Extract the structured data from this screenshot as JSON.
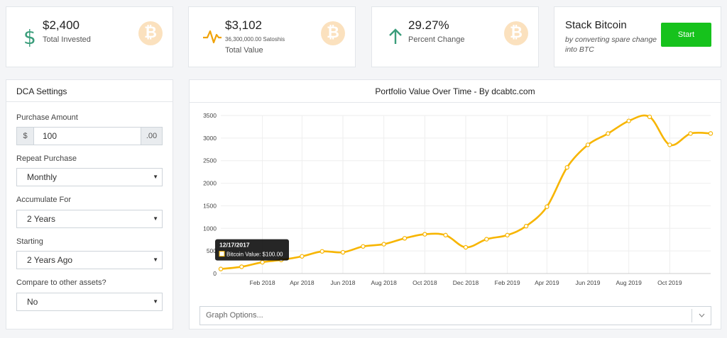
{
  "stats": {
    "invested": {
      "value": "$2,400",
      "label": "Total Invested"
    },
    "total": {
      "value": "$3,102",
      "satoshis": "36,300,000.00 Satoshis",
      "label": "Total Value"
    },
    "change": {
      "value": "29.27%",
      "label": "Percent Change"
    },
    "coin_symbol": "₿"
  },
  "stack": {
    "title": "Stack Bitcoin",
    "subtitle": "by converting spare change into BTC",
    "button": "Start"
  },
  "settings": {
    "title": "DCA Settings",
    "purchase_amount_label": "Purchase Amount",
    "currency_prefix": "$",
    "amount_value": "100",
    "amount_suffix": ".00",
    "repeat_label": "Repeat Purchase",
    "repeat_value": "Monthly",
    "accumulate_label": "Accumulate For",
    "accumulate_value": "2 Years",
    "starting_label": "Starting",
    "starting_value": "2 Years Ago",
    "compare_label": "Compare to other assets?",
    "compare_value": "No"
  },
  "graph_options_placeholder": "Graph Options...",
  "colors": {
    "line": "#f7b500",
    "accent_green": "#16c21c",
    "stat_icon_green": "#3a9d7b",
    "stat_icon_orange": "#f0a30a"
  },
  "chart_data": {
    "type": "line",
    "title": "Portfolio Value Over Time - By dcabtc.com",
    "ylim": [
      0,
      3500
    ],
    "yticks": [
      0,
      500,
      1000,
      1500,
      2000,
      2500,
      3000,
      3500
    ],
    "xticks": [
      "Feb 2018",
      "Apr 2018",
      "Jun 2018",
      "Aug 2018",
      "Oct 2018",
      "Dec 2018",
      "Feb 2019",
      "Apr 2019",
      "Jun 2019",
      "Aug 2019",
      "Oct 2019"
    ],
    "grid": true,
    "series": [
      {
        "name": "Bitcoin Value",
        "x": [
          "2017-12-17",
          "2018-01-17",
          "2018-02-17",
          "2018-03-17",
          "2018-04-17",
          "2018-05-17",
          "2018-06-17",
          "2018-07-17",
          "2018-08-17",
          "2018-09-17",
          "2018-10-17",
          "2018-11-17",
          "2018-12-17",
          "2019-01-17",
          "2019-02-17",
          "2019-03-17",
          "2019-04-17",
          "2019-05-17",
          "2019-06-17",
          "2019-07-17",
          "2019-08-17",
          "2019-09-17",
          "2019-10-17",
          "2019-11-17",
          "2019-12-17"
        ],
        "values": [
          100,
          150,
          250,
          300,
          380,
          490,
          470,
          600,
          650,
          780,
          870,
          850,
          580,
          760,
          850,
          1050,
          1480,
          2350,
          2850,
          3100,
          3380,
          3470,
          2850,
          3100,
          3102
        ]
      }
    ],
    "tooltip": {
      "date": "12/17/2017",
      "label": "Bitcoin Value: $100.00"
    }
  }
}
